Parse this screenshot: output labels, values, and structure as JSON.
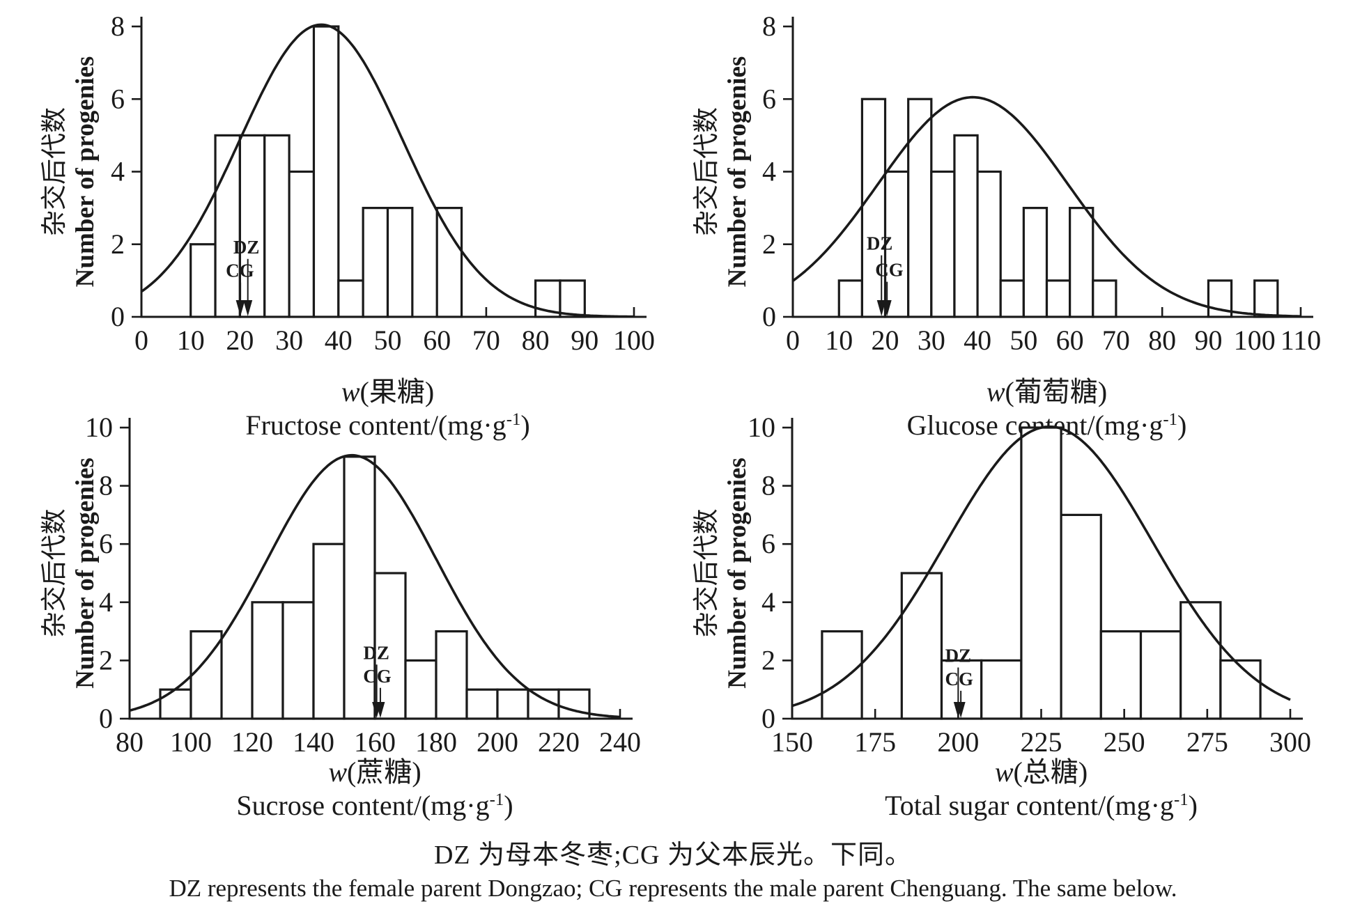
{
  "page": {
    "ink_color": "#1a1a1a",
    "background": "#ffffff",
    "footer_cn": "DZ 为母本冬枣;CG 为父本辰光。下同。",
    "footer_en": "DZ represents the female parent Dongzao; CG represents the male parent Chenguang. The same below."
  },
  "chart_data": [
    {
      "type": "bar",
      "id": "fructose",
      "ylabel_cn": "杂交后代数",
      "ylabel_en": "Number of progenies",
      "xlabel_w": "w",
      "xlabel_cn": "(果糖)",
      "xlabel_en": "Fructose content/(mg·g⁻¹)",
      "xlim": [
        0,
        100
      ],
      "xticks": [
        0,
        10,
        20,
        30,
        40,
        50,
        60,
        70,
        80,
        90,
        100
      ],
      "ylim": [
        0,
        8
      ],
      "yticks": [
        0,
        2,
        4,
        6,
        8
      ],
      "grid": false,
      "bins": [
        {
          "x0": 10,
          "x1": 15,
          "count": 2
        },
        {
          "x0": 15,
          "x1": 20,
          "count": 5
        },
        {
          "x0": 20,
          "x1": 25,
          "count": 5
        },
        {
          "x0": 25,
          "x1": 30,
          "count": 5
        },
        {
          "x0": 30,
          "x1": 35,
          "count": 4
        },
        {
          "x0": 35,
          "x1": 40,
          "count": 8
        },
        {
          "x0": 40,
          "x1": 45,
          "count": 1
        },
        {
          "x0": 45,
          "x1": 50,
          "count": 3
        },
        {
          "x0": 50,
          "x1": 55,
          "count": 3
        },
        {
          "x0": 60,
          "x1": 65,
          "count": 3
        },
        {
          "x0": 80,
          "x1": 85,
          "count": 1
        },
        {
          "x0": 85,
          "x1": 90,
          "count": 1
        }
      ],
      "curve": {
        "mean": 36.5,
        "sigma": 16.5,
        "peak": 8.05
      },
      "markers": [
        {
          "label": "DZ",
          "x": 21.3,
          "label_y": 1.75,
          "arrow_x": 21.6
        },
        {
          "label": "CG",
          "x": 20.0,
          "label_y": 1.1,
          "arrow_x": 20.1
        }
      ]
    },
    {
      "type": "bar",
      "id": "glucose",
      "ylabel_cn": "杂交后代数",
      "ylabel_en": "Number of progenies",
      "xlabel_w": "w",
      "xlabel_cn": "(葡萄糖)",
      "xlabel_en": "Glucose content/(mg·g⁻¹)",
      "xlim": [
        0,
        110
      ],
      "xticks": [
        0,
        10,
        20,
        30,
        40,
        50,
        60,
        70,
        80,
        90,
        100,
        110
      ],
      "ylim": [
        0,
        8
      ],
      "yticks": [
        0,
        2,
        4,
        6,
        8
      ],
      "grid": false,
      "bins": [
        {
          "x0": 10,
          "x1": 15,
          "count": 1
        },
        {
          "x0": 15,
          "x1": 20,
          "count": 6
        },
        {
          "x0": 20,
          "x1": 25,
          "count": 4
        },
        {
          "x0": 25,
          "x1": 30,
          "count": 6
        },
        {
          "x0": 30,
          "x1": 35,
          "count": 4
        },
        {
          "x0": 35,
          "x1": 40,
          "count": 5
        },
        {
          "x0": 40,
          "x1": 45,
          "count": 4
        },
        {
          "x0": 45,
          "x1": 50,
          "count": 1
        },
        {
          "x0": 50,
          "x1": 55,
          "count": 3
        },
        {
          "x0": 55,
          "x1": 60,
          "count": 1
        },
        {
          "x0": 60,
          "x1": 65,
          "count": 3
        },
        {
          "x0": 65,
          "x1": 70,
          "count": 1
        },
        {
          "x0": 90,
          "x1": 95,
          "count": 1
        },
        {
          "x0": 100,
          "x1": 105,
          "count": 1
        }
      ],
      "curve": {
        "mean": 39,
        "sigma": 20.5,
        "peak": 6.05
      },
      "markers": [
        {
          "label": "DZ",
          "x": 18.8,
          "label_y": 1.85,
          "arrow_x": 19.2
        },
        {
          "label": "CG",
          "x": 20.9,
          "label_y": 1.12,
          "arrow_x": 20.4
        }
      ]
    },
    {
      "type": "bar",
      "id": "sucrose",
      "ylabel_cn": "杂交后代数",
      "ylabel_en": "Number of progenies",
      "xlabel_w": "w",
      "xlabel_cn": "(蔗糖)",
      "xlabel_en": "Sucrose content/(mg·g⁻¹)",
      "xlim": [
        80,
        240
      ],
      "xticks": [
        80,
        100,
        120,
        140,
        160,
        180,
        200,
        220,
        240
      ],
      "ylim": [
        0,
        10
      ],
      "yticks": [
        0,
        2,
        4,
        6,
        8,
        10
      ],
      "grid": false,
      "bins": [
        {
          "x0": 90,
          "x1": 100,
          "count": 1
        },
        {
          "x0": 100,
          "x1": 110,
          "count": 3
        },
        {
          "x0": 120,
          "x1": 130,
          "count": 4
        },
        {
          "x0": 130,
          "x1": 140,
          "count": 4
        },
        {
          "x0": 140,
          "x1": 150,
          "count": 6
        },
        {
          "x0": 150,
          "x1": 160,
          "count": 9
        },
        {
          "x0": 160,
          "x1": 170,
          "count": 5
        },
        {
          "x0": 170,
          "x1": 180,
          "count": 2
        },
        {
          "x0": 180,
          "x1": 190,
          "count": 3
        },
        {
          "x0": 190,
          "x1": 200,
          "count": 1
        },
        {
          "x0": 200,
          "x1": 210,
          "count": 1
        },
        {
          "x0": 210,
          "x1": 220,
          "count": 1
        },
        {
          "x0": 220,
          "x1": 230,
          "count": 1
        }
      ],
      "curve": {
        "mean": 152.5,
        "sigma": 27.5,
        "peak": 9.05
      },
      "markers": [
        {
          "label": "DZ",
          "x": 160.5,
          "label_y": 2.05,
          "arrow_x": 160.6
        },
        {
          "label": "CG",
          "x": 160.8,
          "label_y": 1.25,
          "arrow_x": 161.8
        }
      ]
    },
    {
      "type": "bar",
      "id": "total-sugar",
      "ylabel_cn": "杂交后代数",
      "ylabel_en": "Number of progenies",
      "xlabel_w": "w",
      "xlabel_cn": "(总糖)",
      "xlabel_en": "Total sugar content/(mg·g⁻¹)",
      "xlim": [
        150,
        300
      ],
      "xticks": [
        150,
        175,
        200,
        225,
        250,
        275,
        300
      ],
      "ylim": [
        0,
        10
      ],
      "yticks": [
        0,
        2,
        4,
        6,
        8,
        10
      ],
      "grid": false,
      "bins": [
        {
          "x0": 159,
          "x1": 171,
          "count": 3
        },
        {
          "x0": 183,
          "x1": 195,
          "count": 5
        },
        {
          "x0": 195,
          "x1": 207,
          "count": 2
        },
        {
          "x0": 207,
          "x1": 219,
          "count": 2
        },
        {
          "x0": 219,
          "x1": 231,
          "count": 10
        },
        {
          "x0": 231,
          "x1": 243,
          "count": 7
        },
        {
          "x0": 243,
          "x1": 255,
          "count": 3
        },
        {
          "x0": 255,
          "x1": 267,
          "count": 3
        },
        {
          "x0": 267,
          "x1": 279,
          "count": 4
        },
        {
          "x0": 279,
          "x1": 291,
          "count": 2
        }
      ],
      "curve": {
        "mean": 227.5,
        "sigma": 31,
        "peak": 10.03
      },
      "markers": [
        {
          "label": "DZ",
          "x": 200.0,
          "label_y": 1.95,
          "arrow_x": 200.0
        },
        {
          "label": "CG",
          "x": 200.3,
          "label_y": 1.15,
          "arrow_x": 200.8
        }
      ]
    }
  ]
}
